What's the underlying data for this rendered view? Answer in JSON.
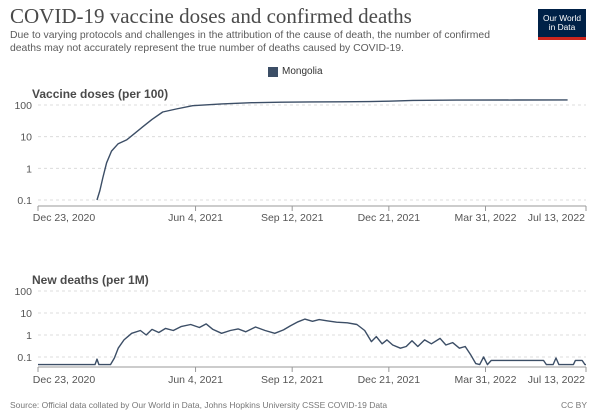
{
  "header": {
    "title": "COVID-19 vaccine doses and confirmed deaths",
    "subtitle": "Due to varying protocols and challenges in the attribution of the cause of death, the number of confirmed deaths may not accurately represent the true number of deaths caused by COVID-19."
  },
  "logo": {
    "line1": "Our World",
    "line2": "in Data"
  },
  "legend": {
    "label": "Mongolia",
    "color": "#3c4e66"
  },
  "footer": {
    "source": "Source: Official data collated by Our World in Data, Johns Hopkins University CSSE COVID-19 Data",
    "license": "CC BY"
  },
  "chart_data": [
    {
      "type": "line",
      "title": "Vaccine doses (per 100)",
      "y_scale": "log",
      "y_ticks": [
        "0.1",
        "1",
        "10",
        "100"
      ],
      "y_tick_values": [
        0.1,
        1,
        10,
        100
      ],
      "x_ticks": [
        "Dec 23, 2020",
        "Jun 4, 2021",
        "Sep 12, 2021",
        "Dec 21, 2021",
        "Mar 31, 2022",
        "Jul 13, 2022"
      ],
      "x_tick_dates": [
        "2020-12-23",
        "2021-06-04",
        "2021-09-12",
        "2021-12-21",
        "2022-03-31",
        "2022-07-13"
      ],
      "xlim": [
        "2020-12-23",
        "2022-07-13"
      ],
      "grid": true,
      "series": [
        {
          "name": "Mongolia",
          "color": "#3c4e66",
          "points": [
            [
              "2021-02-22",
              0.1
            ],
            [
              "2021-02-25",
              0.2
            ],
            [
              "2021-02-28",
              0.5
            ],
            [
              "2021-03-04",
              1.5
            ],
            [
              "2021-03-09",
              3.5
            ],
            [
              "2021-03-16",
              6
            ],
            [
              "2021-03-25",
              8
            ],
            [
              "2021-04-01",
              12
            ],
            [
              "2021-04-10",
              20
            ],
            [
              "2021-04-20",
              35
            ],
            [
              "2021-05-01",
              60
            ],
            [
              "2021-05-15",
              75
            ],
            [
              "2021-06-01",
              95
            ],
            [
              "2021-07-01",
              108
            ],
            [
              "2021-08-01",
              118
            ],
            [
              "2021-09-01",
              123
            ],
            [
              "2021-10-01",
              125
            ],
            [
              "2021-11-01",
              126
            ],
            [
              "2021-12-01",
              128
            ],
            [
              "2021-12-21",
              132
            ],
            [
              "2022-01-15",
              140
            ],
            [
              "2022-03-01",
              143
            ],
            [
              "2022-05-01",
              144
            ],
            [
              "2022-06-24",
              145
            ]
          ]
        }
      ]
    },
    {
      "type": "line",
      "title": "New deaths (per 1M)",
      "y_scale": "log",
      "y_ticks": [
        "0.1",
        "1",
        "10",
        "100"
      ],
      "y_tick_values": [
        0.1,
        1,
        10,
        100
      ],
      "x_ticks": [
        "Dec 23, 2020",
        "Jun 4, 2021",
        "Sep 12, 2021",
        "Dec 21, 2021",
        "Mar 31, 2022",
        "Jul 13, 2022"
      ],
      "x_tick_dates": [
        "2020-12-23",
        "2021-06-04",
        "2021-09-12",
        "2021-12-21",
        "2022-03-31",
        "2022-07-13"
      ],
      "xlim": [
        "2020-12-23",
        "2022-07-13"
      ],
      "grid": true,
      "series": [
        {
          "name": "Mongolia",
          "color": "#3c4e66",
          "points": [
            [
              "2020-12-23",
              0.045
            ],
            [
              "2021-02-20",
              0.045
            ],
            [
              "2021-02-22",
              0.08
            ],
            [
              "2021-02-24",
              0.045
            ],
            [
              "2021-03-08",
              0.045
            ],
            [
              "2021-03-12",
              0.09
            ],
            [
              "2021-03-16",
              0.25
            ],
            [
              "2021-03-22",
              0.6
            ],
            [
              "2021-03-30",
              1.2
            ],
            [
              "2021-04-08",
              1.6
            ],
            [
              "2021-04-14",
              1.0
            ],
            [
              "2021-04-20",
              1.8
            ],
            [
              "2021-04-27",
              1.3
            ],
            [
              "2021-05-04",
              2.0
            ],
            [
              "2021-05-12",
              1.6
            ],
            [
              "2021-05-20",
              2.4
            ],
            [
              "2021-05-30",
              3.0
            ],
            [
              "2021-06-08",
              2.2
            ],
            [
              "2021-06-15",
              3.2
            ],
            [
              "2021-06-22",
              1.8
            ],
            [
              "2021-07-01",
              1.2
            ],
            [
              "2021-07-10",
              1.6
            ],
            [
              "2021-07-18",
              1.9
            ],
            [
              "2021-07-26",
              1.4
            ],
            [
              "2021-08-05",
              2.3
            ],
            [
              "2021-08-15",
              1.6
            ],
            [
              "2021-08-25",
              1.2
            ],
            [
              "2021-09-03",
              1.7
            ],
            [
              "2021-09-10",
              2.6
            ],
            [
              "2021-09-18",
              4.0
            ],
            [
              "2021-09-25",
              5.3
            ],
            [
              "2021-10-03",
              4.2
            ],
            [
              "2021-10-10",
              5.0
            ],
            [
              "2021-10-18",
              4.4
            ],
            [
              "2021-10-28",
              3.8
            ],
            [
              "2021-11-08",
              3.6
            ],
            [
              "2021-11-18",
              3.0
            ],
            [
              "2021-11-26",
              1.6
            ],
            [
              "2021-12-03",
              0.5
            ],
            [
              "2021-12-08",
              0.85
            ],
            [
              "2021-12-14",
              0.4
            ],
            [
              "2021-12-19",
              0.6
            ],
            [
              "2021-12-25",
              0.35
            ],
            [
              "2022-01-02",
              0.25
            ],
            [
              "2022-01-08",
              0.3
            ],
            [
              "2022-01-14",
              0.55
            ],
            [
              "2022-01-20",
              0.3
            ],
            [
              "2022-01-27",
              0.6
            ],
            [
              "2022-02-03",
              0.4
            ],
            [
              "2022-02-12",
              0.7
            ],
            [
              "2022-02-18",
              0.35
            ],
            [
              "2022-02-25",
              0.45
            ],
            [
              "2022-03-04",
              0.25
            ],
            [
              "2022-03-10",
              0.3
            ],
            [
              "2022-03-16",
              0.12
            ],
            [
              "2022-03-21",
              0.05
            ],
            [
              "2022-03-25",
              0.045
            ],
            [
              "2022-03-29",
              0.1
            ],
            [
              "2022-04-02",
              0.045
            ],
            [
              "2022-04-06",
              0.07
            ],
            [
              "2022-05-30",
              0.07
            ],
            [
              "2022-06-02",
              0.045
            ],
            [
              "2022-06-09",
              0.045
            ],
            [
              "2022-06-12",
              0.09
            ],
            [
              "2022-06-15",
              0.045
            ],
            [
              "2022-06-30",
              0.045
            ],
            [
              "2022-07-02",
              0.07
            ],
            [
              "2022-07-09",
              0.07
            ],
            [
              "2022-07-12",
              0.045
            ],
            [
              "2022-07-13",
              0.045
            ]
          ]
        }
      ]
    }
  ]
}
